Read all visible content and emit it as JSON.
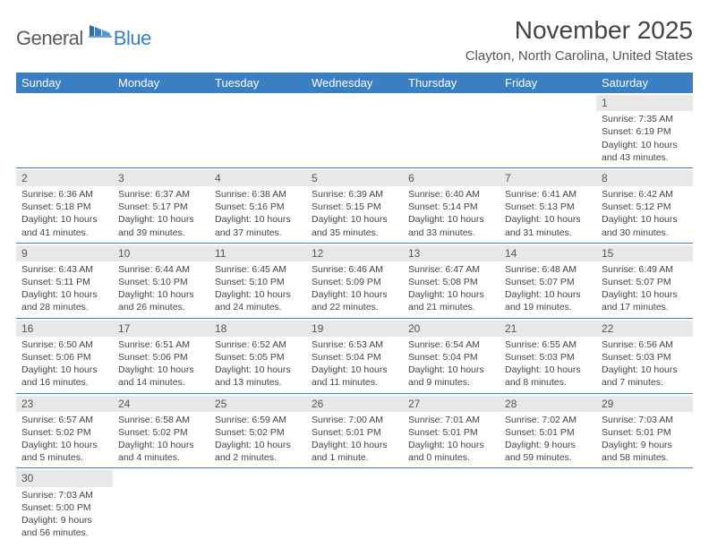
{
  "logo": {
    "text1": "General",
    "text2": "Blue"
  },
  "header": {
    "title": "November 2025",
    "location": "Clayton, North Carolina, United States"
  },
  "weekdays": [
    "Sunday",
    "Monday",
    "Tuesday",
    "Wednesday",
    "Thursday",
    "Friday",
    "Saturday"
  ],
  "colors": {
    "header_bg": "#3a7fc4",
    "daynum_bg": "#e8e8e8",
    "text": "#444444"
  },
  "weeks": [
    [
      null,
      null,
      null,
      null,
      null,
      null,
      {
        "n": "1",
        "sr": "Sunrise: 7:35 AM",
        "ss": "Sunset: 6:19 PM",
        "d1": "Daylight: 10 hours",
        "d2": "and 43 minutes."
      }
    ],
    [
      {
        "n": "2",
        "sr": "Sunrise: 6:36 AM",
        "ss": "Sunset: 5:18 PM",
        "d1": "Daylight: 10 hours",
        "d2": "and 41 minutes."
      },
      {
        "n": "3",
        "sr": "Sunrise: 6:37 AM",
        "ss": "Sunset: 5:17 PM",
        "d1": "Daylight: 10 hours",
        "d2": "and 39 minutes."
      },
      {
        "n": "4",
        "sr": "Sunrise: 6:38 AM",
        "ss": "Sunset: 5:16 PM",
        "d1": "Daylight: 10 hours",
        "d2": "and 37 minutes."
      },
      {
        "n": "5",
        "sr": "Sunrise: 6:39 AM",
        "ss": "Sunset: 5:15 PM",
        "d1": "Daylight: 10 hours",
        "d2": "and 35 minutes."
      },
      {
        "n": "6",
        "sr": "Sunrise: 6:40 AM",
        "ss": "Sunset: 5:14 PM",
        "d1": "Daylight: 10 hours",
        "d2": "and 33 minutes."
      },
      {
        "n": "7",
        "sr": "Sunrise: 6:41 AM",
        "ss": "Sunset: 5:13 PM",
        "d1": "Daylight: 10 hours",
        "d2": "and 31 minutes."
      },
      {
        "n": "8",
        "sr": "Sunrise: 6:42 AM",
        "ss": "Sunset: 5:12 PM",
        "d1": "Daylight: 10 hours",
        "d2": "and 30 minutes."
      }
    ],
    [
      {
        "n": "9",
        "sr": "Sunrise: 6:43 AM",
        "ss": "Sunset: 5:11 PM",
        "d1": "Daylight: 10 hours",
        "d2": "and 28 minutes."
      },
      {
        "n": "10",
        "sr": "Sunrise: 6:44 AM",
        "ss": "Sunset: 5:10 PM",
        "d1": "Daylight: 10 hours",
        "d2": "and 26 minutes."
      },
      {
        "n": "11",
        "sr": "Sunrise: 6:45 AM",
        "ss": "Sunset: 5:10 PM",
        "d1": "Daylight: 10 hours",
        "d2": "and 24 minutes."
      },
      {
        "n": "12",
        "sr": "Sunrise: 6:46 AM",
        "ss": "Sunset: 5:09 PM",
        "d1": "Daylight: 10 hours",
        "d2": "and 22 minutes."
      },
      {
        "n": "13",
        "sr": "Sunrise: 6:47 AM",
        "ss": "Sunset: 5:08 PM",
        "d1": "Daylight: 10 hours",
        "d2": "and 21 minutes."
      },
      {
        "n": "14",
        "sr": "Sunrise: 6:48 AM",
        "ss": "Sunset: 5:07 PM",
        "d1": "Daylight: 10 hours",
        "d2": "and 19 minutes."
      },
      {
        "n": "15",
        "sr": "Sunrise: 6:49 AM",
        "ss": "Sunset: 5:07 PM",
        "d1": "Daylight: 10 hours",
        "d2": "and 17 minutes."
      }
    ],
    [
      {
        "n": "16",
        "sr": "Sunrise: 6:50 AM",
        "ss": "Sunset: 5:06 PM",
        "d1": "Daylight: 10 hours",
        "d2": "and 16 minutes."
      },
      {
        "n": "17",
        "sr": "Sunrise: 6:51 AM",
        "ss": "Sunset: 5:06 PM",
        "d1": "Daylight: 10 hours",
        "d2": "and 14 minutes."
      },
      {
        "n": "18",
        "sr": "Sunrise: 6:52 AM",
        "ss": "Sunset: 5:05 PM",
        "d1": "Daylight: 10 hours",
        "d2": "and 13 minutes."
      },
      {
        "n": "19",
        "sr": "Sunrise: 6:53 AM",
        "ss": "Sunset: 5:04 PM",
        "d1": "Daylight: 10 hours",
        "d2": "and 11 minutes."
      },
      {
        "n": "20",
        "sr": "Sunrise: 6:54 AM",
        "ss": "Sunset: 5:04 PM",
        "d1": "Daylight: 10 hours",
        "d2": "and 9 minutes."
      },
      {
        "n": "21",
        "sr": "Sunrise: 6:55 AM",
        "ss": "Sunset: 5:03 PM",
        "d1": "Daylight: 10 hours",
        "d2": "and 8 minutes."
      },
      {
        "n": "22",
        "sr": "Sunrise: 6:56 AM",
        "ss": "Sunset: 5:03 PM",
        "d1": "Daylight: 10 hours",
        "d2": "and 7 minutes."
      }
    ],
    [
      {
        "n": "23",
        "sr": "Sunrise: 6:57 AM",
        "ss": "Sunset: 5:02 PM",
        "d1": "Daylight: 10 hours",
        "d2": "and 5 minutes."
      },
      {
        "n": "24",
        "sr": "Sunrise: 6:58 AM",
        "ss": "Sunset: 5:02 PM",
        "d1": "Daylight: 10 hours",
        "d2": "and 4 minutes."
      },
      {
        "n": "25",
        "sr": "Sunrise: 6:59 AM",
        "ss": "Sunset: 5:02 PM",
        "d1": "Daylight: 10 hours",
        "d2": "and 2 minutes."
      },
      {
        "n": "26",
        "sr": "Sunrise: 7:00 AM",
        "ss": "Sunset: 5:01 PM",
        "d1": "Daylight: 10 hours",
        "d2": "and 1 minute."
      },
      {
        "n": "27",
        "sr": "Sunrise: 7:01 AM",
        "ss": "Sunset: 5:01 PM",
        "d1": "Daylight: 10 hours",
        "d2": "and 0 minutes."
      },
      {
        "n": "28",
        "sr": "Sunrise: 7:02 AM",
        "ss": "Sunset: 5:01 PM",
        "d1": "Daylight: 9 hours",
        "d2": "and 59 minutes."
      },
      {
        "n": "29",
        "sr": "Sunrise: 7:03 AM",
        "ss": "Sunset: 5:01 PM",
        "d1": "Daylight: 9 hours",
        "d2": "and 58 minutes."
      }
    ],
    [
      {
        "n": "30",
        "sr": "Sunrise: 7:03 AM",
        "ss": "Sunset: 5:00 PM",
        "d1": "Daylight: 9 hours",
        "d2": "and 56 minutes."
      },
      null,
      null,
      null,
      null,
      null,
      null
    ]
  ]
}
